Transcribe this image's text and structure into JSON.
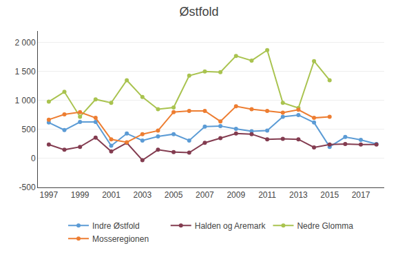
{
  "chart_data": {
    "type": "line",
    "title": "Østfold",
    "x": [
      1997,
      1998,
      1999,
      2000,
      2001,
      2002,
      2003,
      2004,
      2005,
      2006,
      2007,
      2008,
      2009,
      2010,
      2011,
      2012,
      2013,
      2014,
      2015,
      2016,
      2017,
      2018
    ],
    "series": [
      {
        "name": "Indre Østfold",
        "color": "#5B9BD5",
        "values": [
          620,
          490,
          630,
          630,
          220,
          430,
          310,
          380,
          420,
          310,
          550,
          560,
          510,
          470,
          480,
          720,
          750,
          620,
          200,
          370,
          320,
          250
        ]
      },
      {
        "name": "Halden og Aremark",
        "color": "#833C50",
        "values": [
          240,
          150,
          200,
          360,
          120,
          270,
          -30,
          150,
          110,
          100,
          270,
          350,
          430,
          420,
          330,
          340,
          330,
          190,
          240,
          250,
          240,
          240
        ]
      },
      {
        "name": "Nedre Glomma",
        "color": "#A9C34F",
        "values": [
          980,
          1150,
          720,
          1020,
          960,
          1350,
          1060,
          850,
          880,
          1430,
          1500,
          1490,
          1770,
          1690,
          1870,
          960,
          870,
          1680,
          1350,
          null,
          null,
          null
        ]
      },
      {
        "name": "Mosseregionen",
        "color": "#ED7D31",
        "values": [
          670,
          760,
          800,
          700,
          330,
          280,
          420,
          480,
          800,
          820,
          820,
          640,
          900,
          850,
          820,
          790,
          840,
          700,
          720,
          null,
          null,
          null
        ]
      }
    ],
    "xlim": [
      1996.3,
      2018.5
    ],
    "xticks": [
      1997,
      1999,
      2001,
      2003,
      2005,
      2007,
      2009,
      2011,
      2013,
      2015,
      2017
    ],
    "ylim": [
      -500,
      2200
    ],
    "yticks": [
      -500,
      0,
      500,
      {
        "value": 1000,
        "label": "1 000"
      },
      {
        "value": 1500,
        "label": "1 500"
      },
      {
        "value": 2000,
        "label": "2 000"
      }
    ],
    "grid": "y",
    "legend": "bottom",
    "marker": "circle"
  }
}
